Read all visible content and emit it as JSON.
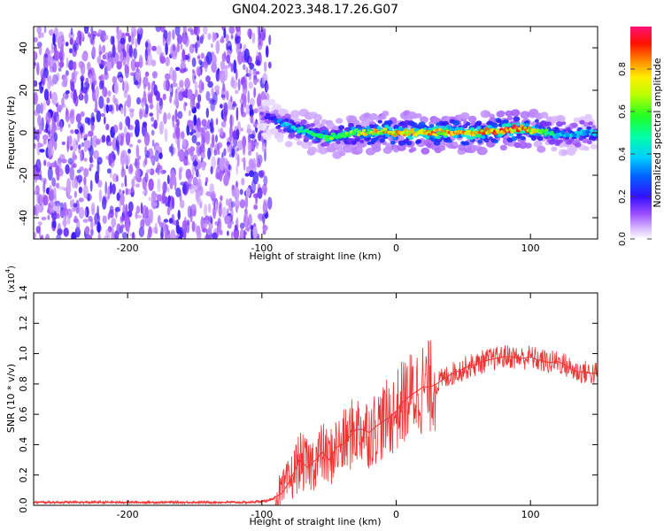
{
  "title": "GN04.2023.348.17.26.G07",
  "chart_data": [
    {
      "type": "heatmap",
      "xlabel": "Height of straight line (km)",
      "ylabel": "Frequency (Hz)",
      "xlim": [
        -270,
        150
      ],
      "ylim": [
        -50,
        50
      ],
      "xticks": [
        -200,
        -100,
        0,
        100
      ],
      "xtick_labels": [
        "-200",
        "-100",
        "0",
        "100"
      ],
      "yticks": [
        -40,
        -20,
        0,
        20,
        40
      ],
      "ytick_labels": [
        "-40",
        "-20",
        "0",
        "20",
        "40"
      ],
      "colorbar": {
        "label": "Normalized spectral amplitude",
        "range": [
          0,
          1
        ],
        "ticks": [
          0.0,
          0.2,
          0.4,
          0.6,
          0.8
        ],
        "tick_labels": [
          "0.0",
          "0.2",
          "0.4",
          "0.6",
          "0.8"
        ]
      },
      "noise_region_x": [
        -270,
        -100
      ],
      "ridge": {
        "x": [
          -100,
          -90,
          -80,
          -70,
          -60,
          -50,
          -40,
          -30,
          -20,
          -10,
          0,
          10,
          20,
          30,
          40,
          50,
          60,
          70,
          80,
          90,
          100,
          110,
          120,
          130,
          140,
          150
        ],
        "frequency": [
          8,
          6,
          3,
          1,
          -1,
          -2,
          -1,
          0,
          0,
          0.5,
          0,
          0,
          0,
          0,
          0.5,
          0,
          0,
          0.5,
          1,
          2,
          1.5,
          0.5,
          -1,
          -1,
          0,
          0
        ],
        "amplitude": [
          0.15,
          0.3,
          0.4,
          0.5,
          0.55,
          0.6,
          0.65,
          0.7,
          0.75,
          0.8,
          0.82,
          0.85,
          0.85,
          0.85,
          0.85,
          0.85,
          0.85,
          0.85,
          0.9,
          0.95,
          0.8,
          0.6,
          0.45,
          0.4,
          0.4,
          0.4
        ]
      },
      "grid": false
    },
    {
      "type": "line",
      "xlabel": "Height of straight line (km)",
      "ylabel": "SNR (10 * v/v)",
      "y_multiplier_label": "(x10^4)",
      "y_multiplier_base": "x10",
      "y_multiplier_exp": "4",
      "xlim": [
        -270,
        150
      ],
      "ylim": [
        0,
        1.4
      ],
      "xticks": [
        -200,
        -100,
        0,
        100
      ],
      "xtick_labels": [
        "-200",
        "-100",
        "0",
        "100"
      ],
      "yticks": [
        0.0,
        0.2,
        0.4,
        0.6,
        0.8,
        1.0,
        1.2,
        1.4
      ],
      "ytick_labels": [
        "0.0",
        "0.2",
        "0.4",
        "0.6",
        "0.8",
        "1.0",
        "1.2",
        "1.4"
      ],
      "color": "#ee3333",
      "series": [
        {
          "x": [
            -270,
            -250,
            -230,
            -210,
            -190,
            -170,
            -150,
            -130,
            -110,
            -95,
            -85,
            -78,
            -72,
            -66,
            -60,
            -55,
            -50,
            -45,
            -40,
            -35,
            -30,
            -25,
            -20,
            -15,
            -10,
            -5,
            0,
            5,
            10,
            15,
            20,
            25,
            30,
            35,
            40,
            45,
            50,
            55,
            60,
            65,
            70,
            75,
            80,
            85,
            90,
            95,
            100,
            105,
            110,
            115,
            120,
            125,
            130,
            135,
            140,
            145,
            150
          ],
          "values": [
            0.02,
            0.02,
            0.02,
            0.02,
            0.02,
            0.02,
            0.02,
            0.02,
            0.02,
            0.03,
            0.08,
            0.18,
            0.3,
            0.25,
            0.3,
            0.35,
            0.3,
            0.38,
            0.4,
            0.45,
            0.5,
            0.5,
            0.48,
            0.52,
            0.55,
            0.58,
            0.62,
            0.68,
            0.72,
            0.75,
            0.78,
            0.78,
            0.8,
            0.83,
            0.86,
            0.88,
            0.9,
            0.92,
            0.93,
            0.95,
            0.96,
            0.97,
            0.98,
            0.98,
            0.97,
            0.97,
            0.98,
            0.96,
            0.95,
            0.94,
            0.95,
            0.93,
            0.9,
            0.88,
            0.88,
            0.87,
            0.87
          ]
        }
      ],
      "grid": false
    }
  ]
}
